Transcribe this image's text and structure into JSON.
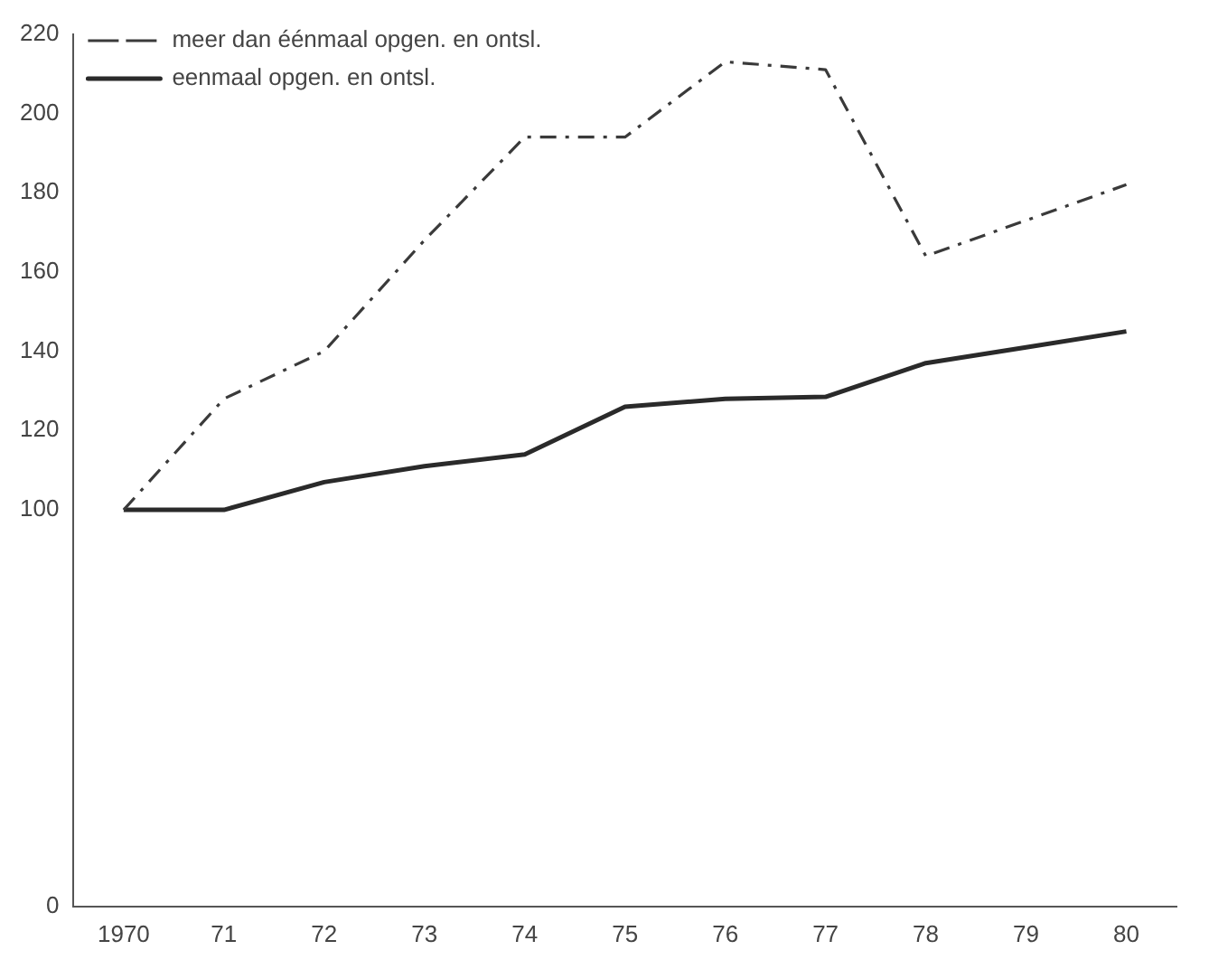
{
  "chart_data": {
    "type": "line",
    "categories": [
      "1970",
      "71",
      "72",
      "73",
      "74",
      "75",
      "76",
      "77",
      "78",
      "79",
      "80"
    ],
    "series": [
      {
        "name": "meer dan éénmaal opgen. en ontsl.",
        "color": "#3a3a3a",
        "line_style": "dashed",
        "values": [
          100,
          128,
          140,
          168,
          194,
          194,
          213,
          211,
          164,
          173,
          182
        ]
      },
      {
        "name": "eenmaal opgen. en ontsl.",
        "color": "#2a2a2a",
        "line_style": "solid",
        "values": [
          100,
          100,
          107,
          111,
          114,
          126,
          128,
          128.5,
          137,
          141,
          145
        ]
      }
    ],
    "ylim": [
      0,
      220
    ],
    "yticks": [
      0,
      100,
      120,
      140,
      160,
      180,
      200,
      220
    ],
    "grid": false,
    "legend": "top left",
    "marker": "none"
  }
}
